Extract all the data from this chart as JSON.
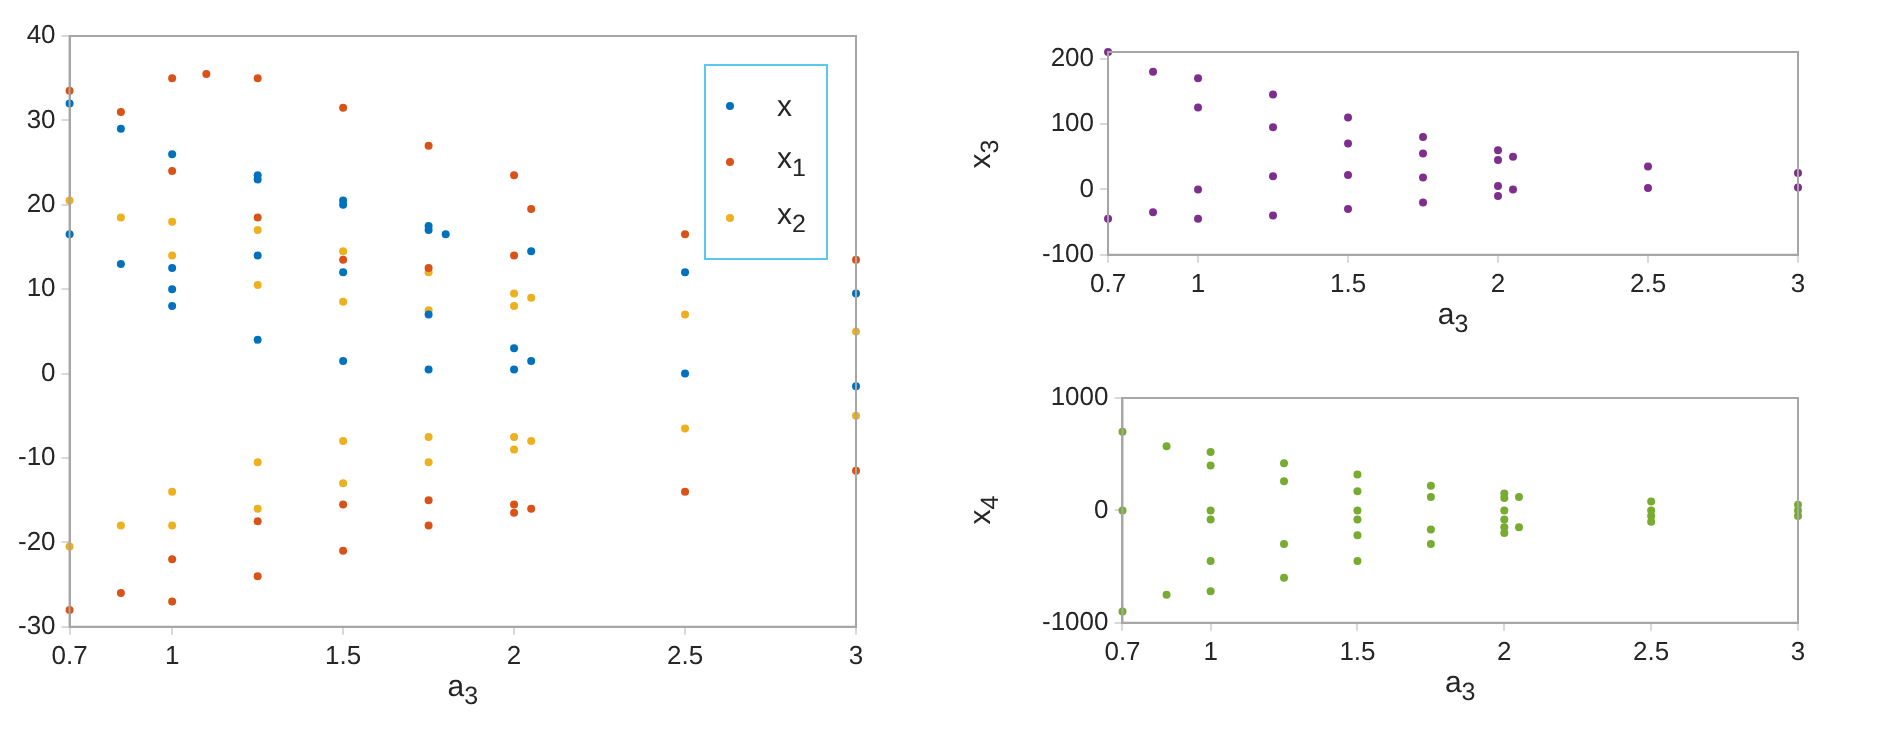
{
  "chart_data": [
    {
      "type": "scatter",
      "xlabel": "a$_{3}$",
      "xlim": [
        0.7,
        3
      ],
      "xticks": [
        0.7,
        1,
        1.5,
        2,
        2.5,
        3
      ],
      "ylim": [
        -30,
        40
      ],
      "yticks": [
        -30,
        -20,
        -10,
        0,
        10,
        20,
        30,
        40
      ],
      "legend": "top right",
      "marker": "circle",
      "series": [
        {
          "name": "x",
          "color": "#0072bd",
          "x": [
            0.7,
            0.85,
            1.0,
            1.25,
            1.5,
            1.75,
            1.8,
            2.05,
            2.5,
            3,
            0.7,
            0.85,
            1.0,
            1.0,
            1.25,
            1.5,
            1.75,
            2.0,
            1.0,
            1.25,
            1.5,
            1.75,
            2.0,
            2.05,
            2.5,
            3,
            1.25,
            1.5,
            1.75
          ],
          "values": [
            32,
            29,
            26,
            23,
            20.5,
            17.5,
            16.5,
            14.5,
            12,
            9.5,
            16.5,
            13,
            10,
            12.5,
            14,
            12,
            7,
            3,
            8,
            4,
            1.5,
            0.5,
            0.5,
            1.5,
            0,
            -1.5,
            23.5,
            20,
            17
          ]
        },
        {
          "name": "x$_{1}$",
          "color": "#d95319",
          "x": [
            0.7,
            0.85,
            1.0,
            1.1,
            1.25,
            1.5,
            1.75,
            2.0,
            1.0,
            1.25,
            1.5,
            1.75,
            2.0,
            2.05,
            2.5,
            3,
            0.7,
            0.85,
            1.0,
            1.25,
            1.5,
            1.75,
            2.0,
            1.0,
            1.25,
            1.5,
            1.75,
            2.0,
            2.05,
            2.5,
            3
          ],
          "values": [
            33.5,
            31,
            35,
            35.5,
            35,
            31.5,
            27,
            23.5,
            24,
            18.5,
            13.5,
            12.5,
            14,
            19.5,
            16.5,
            13.5,
            -28,
            -26,
            -22,
            -17.5,
            -15.5,
            -15,
            -15.5,
            -27,
            -24,
            -21,
            -18,
            -16.5,
            -16,
            -14,
            -11.5
          ]
        },
        {
          "name": "x$_{2}$",
          "color": "#edb120",
          "x": [
            0.7,
            0.85,
            1.0,
            1.25,
            1.5,
            1.75,
            2.0,
            1.0,
            1.25,
            1.5,
            1.75,
            2.0,
            2.05,
            2.5,
            3,
            0.7,
            0.85,
            1.0,
            1.25,
            1.5,
            1.75,
            2.0,
            1.0,
            1.25,
            1.5,
            1.75,
            2.0,
            2.05,
            2.5,
            3
          ],
          "values": [
            20.5,
            18.5,
            18,
            17,
            14.5,
            12,
            9.5,
            14,
            10.5,
            8.5,
            7.5,
            8,
            9,
            7,
            5,
            -20.5,
            -18,
            -14,
            -10.5,
            -8,
            -7.5,
            -7.5,
            -18,
            -16,
            -13,
            -10.5,
            -9,
            -8,
            -6.5,
            -5
          ]
        }
      ]
    },
    {
      "type": "scatter",
      "xlabel": "a$_{3}$",
      "ylabel": "x$_{3}$",
      "xlim": [
        0.7,
        3
      ],
      "xticks": [
        0.7,
        1,
        1.5,
        2,
        2.5,
        3
      ],
      "ylim": [
        -100,
        210
      ],
      "yticks": [
        -100,
        0,
        100,
        200
      ],
      "marker": "circle",
      "series": [
        {
          "color": "#7e2f8e",
          "x": [
            0.7,
            0.85,
            1.0,
            1.25,
            1.5,
            1.75,
            2.0,
            1.0,
            1.25,
            1.5,
            1.75,
            2.0,
            2.05,
            2.5,
            3,
            0.7,
            0.85,
            1.0,
            1.25,
            1.5,
            1.75,
            2.0,
            1.0,
            1.25,
            1.5,
            1.75,
            2.0,
            2.05,
            2.5,
            3
          ],
          "values": [
            210,
            180,
            170,
            145,
            110,
            80,
            60,
            125,
            95,
            70,
            55,
            45,
            50,
            35,
            25,
            -45,
            -35,
            0,
            20,
            22,
            18,
            5,
            -45,
            -40,
            -30,
            -20,
            -10,
            0,
            2,
            3
          ]
        }
      ]
    },
    {
      "type": "scatter",
      "xlabel": "a$_{3}$",
      "ylabel": "x$_{4}$",
      "xlim": [
        0.7,
        3
      ],
      "xticks": [
        0.7,
        1,
        1.5,
        2,
        2.5,
        3
      ],
      "ylim": [
        -1000,
        1000
      ],
      "yticks": [
        -1000,
        0,
        1000
      ],
      "marker": "circle",
      "series": [
        {
          "color": "#77ac30",
          "x": [
            0.7,
            0.85,
            1.0,
            1.25,
            1.5,
            1.75,
            2.0,
            1.0,
            1.25,
            1.5,
            1.75,
            2.0,
            2.05,
            2.5,
            3,
            0.7,
            1.0,
            1.5,
            2.0,
            2.5,
            3,
            1.0,
            1.5,
            2.0,
            2.5,
            0.7,
            0.85,
            1.0,
            1.25,
            1.5,
            1.75,
            2.0,
            1.0,
            1.25,
            1.5,
            1.75,
            2.0,
            2.05,
            2.5,
            3
          ],
          "values": [
            700,
            570,
            520,
            420,
            320,
            220,
            150,
            400,
            260,
            170,
            120,
            110,
            120,
            80,
            50,
            0,
            0,
            0,
            0,
            0,
            0,
            -80,
            -80,
            -80,
            -50,
            -900,
            -750,
            -450,
            -300,
            -220,
            -170,
            -150,
            -720,
            -600,
            -450,
            -300,
            -200,
            -150,
            -100,
            -50
          ]
        }
      ]
    }
  ]
}
